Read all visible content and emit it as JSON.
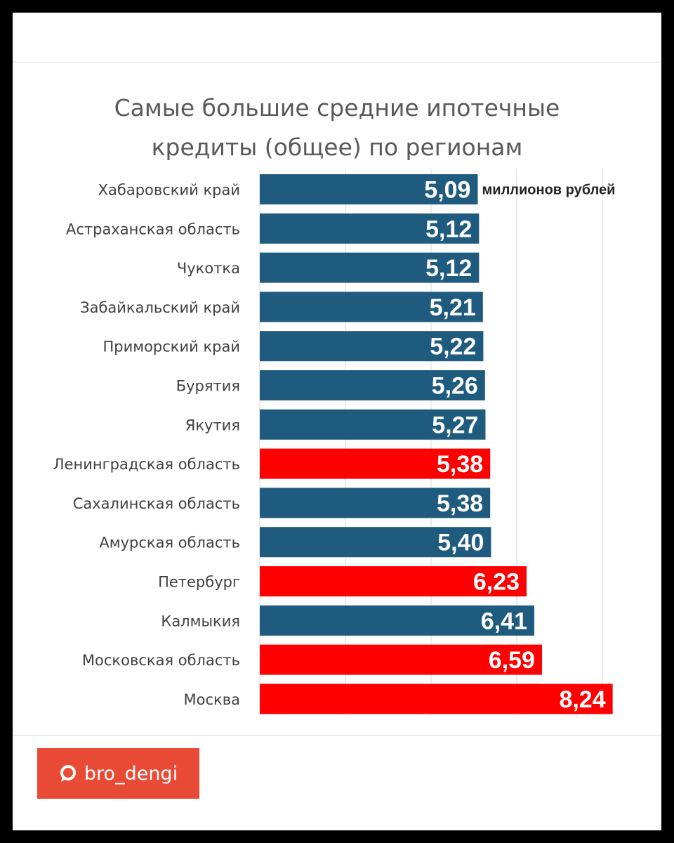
{
  "chart_data": {
    "type": "bar",
    "orientation": "horizontal",
    "title": "Самые большие средние ипотечные кредиты (общее) по регионам",
    "title_lines": [
      "Самые большие средние ипотечные",
      "кредиты (общее) по регионам"
    ],
    "unit_annotation": "миллионов рублей",
    "categories": [
      "Хабаровский край",
      "Астраханская область",
      "Чукотка",
      "Забайкальский край",
      "Приморский край",
      "Бурятия",
      "Якутия",
      "Ленинградская область",
      "Сахалинская область",
      "Амурская область",
      "Петербург",
      "Калмыкия",
      "Московская область",
      "Москва"
    ],
    "values": [
      5.09,
      5.12,
      5.12,
      5.21,
      5.22,
      5.26,
      5.27,
      5.38,
      5.38,
      5.4,
      6.23,
      6.41,
      6.59,
      8.24
    ],
    "value_labels": [
      "5,09",
      "5,12",
      "5,12",
      "5,21",
      "5,22",
      "5,26",
      "5,27",
      "5,38",
      "5,38",
      "5,40",
      "6,23",
      "6,41",
      "6,59",
      "8,24"
    ],
    "highlighted": [
      false,
      false,
      false,
      false,
      false,
      false,
      false,
      true,
      false,
      false,
      true,
      false,
      true,
      true
    ],
    "xlim": [
      0,
      10
    ],
    "grid": true,
    "legend": "none",
    "colors": {
      "default": "#1f5b7e",
      "highlight": "#ff0000"
    }
  },
  "brand": {
    "label": "bro_dengi",
    "icon": "chat-bubble-icon"
  }
}
